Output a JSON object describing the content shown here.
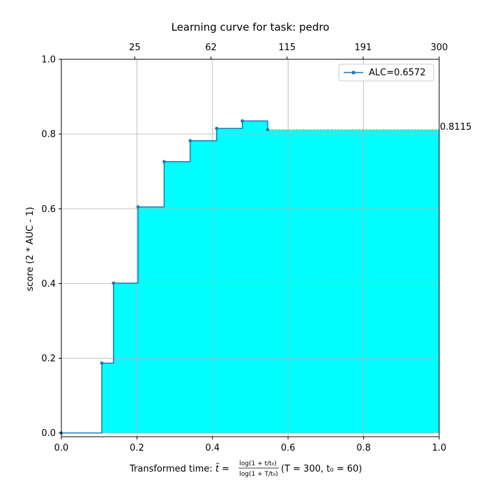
{
  "chart_data": {
    "type": "step-area",
    "title": "Learning curve for task: pedro",
    "xlabel": {
      "prefix": "Transformed time: ",
      "t_tilde": "t̃",
      "equals": " = ",
      "numerator": "log(1 + t/t₀)",
      "denominator": "log(1 + T/t₀)",
      "suffix": "  (T = 300,  t₀ = 60)"
    },
    "ylabel": "score (2 * AUC - 1)",
    "xlim": [
      0,
      1
    ],
    "ylim": [
      -0.01,
      1.0
    ],
    "x_ticks": [
      "0.0",
      "0.2",
      "0.4",
      "0.6",
      "0.8",
      "1.0"
    ],
    "y_ticks": [
      "0.0",
      "0.2",
      "0.4",
      "0.6",
      "0.8",
      "1.0"
    ],
    "top_axis_ticks": [
      "25",
      "62",
      "115",
      "191",
      "300"
    ],
    "grid": true,
    "legend": {
      "position": "top-right",
      "label": "ALC=0.6572"
    },
    "final_score_label": "0.8115",
    "series": [
      {
        "x": [
          0.0,
          0.107,
          0.138,
          0.203,
          0.272,
          0.341,
          0.411,
          0.479,
          0.546
        ],
        "y": [
          0.0,
          0.187,
          0.401,
          0.605,
          0.726,
          0.782,
          0.815,
          0.835,
          0.8115
        ]
      }
    ],
    "colors": {
      "fill": "#00ffff",
      "line": "#1f77b4",
      "grid": "#b0b0b0",
      "extension": "#ff7f0e"
    }
  }
}
